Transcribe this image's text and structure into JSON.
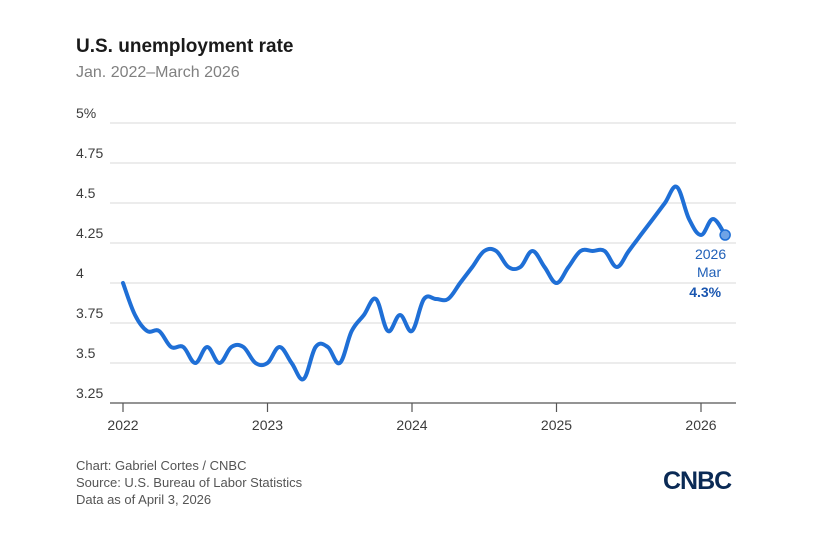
{
  "chart_data": {
    "type": "line",
    "title": "U.S. unemployment rate",
    "subtitle": "Jan. 2022–March 2026",
    "xlabel": "",
    "ylabel": "",
    "ylim": [
      3.25,
      5
    ],
    "y_ticks": [
      "5%",
      "4.75",
      "4.5",
      "4.25",
      "4",
      "3.75",
      "3.5",
      "3.25"
    ],
    "y_tick_values": [
      5,
      4.75,
      4.5,
      4.25,
      4,
      3.75,
      3.5,
      3.25
    ],
    "x_ticks": [
      "2022",
      "2023",
      "2024",
      "2025",
      "2026"
    ],
    "x_tick_values": [
      2022,
      2023,
      2024,
      2025,
      2026
    ],
    "series": [
      {
        "name": "Unemployment rate",
        "color": "#1f6fd6",
        "x": [
          2022.0,
          2022.083,
          2022.167,
          2022.25,
          2022.333,
          2022.417,
          2022.5,
          2022.583,
          2022.667,
          2022.75,
          2022.833,
          2022.917,
          2023.0,
          2023.083,
          2023.167,
          2023.25,
          2023.333,
          2023.417,
          2023.5,
          2023.583,
          2023.667,
          2023.75,
          2023.833,
          2023.917,
          2024.0,
          2024.083,
          2024.167,
          2024.25,
          2024.333,
          2024.417,
          2024.5,
          2024.583,
          2024.667,
          2024.75,
          2024.833,
          2024.917,
          2025.0,
          2025.083,
          2025.167,
          2025.25,
          2025.333,
          2025.417,
          2025.5,
          2025.583,
          2025.667,
          2025.75,
          2025.833,
          2025.917,
          2026.0,
          2026.083,
          2026.167
        ],
        "values": [
          4.0,
          3.8,
          3.7,
          3.7,
          3.6,
          3.6,
          3.5,
          3.6,
          3.5,
          3.6,
          3.6,
          3.5,
          3.5,
          3.6,
          3.5,
          3.4,
          3.6,
          3.6,
          3.5,
          3.7,
          3.8,
          3.9,
          3.7,
          3.8,
          3.7,
          3.9,
          3.9,
          3.9,
          4.0,
          4.1,
          4.2,
          4.2,
          4.1,
          4.1,
          4.2,
          4.1,
          4.0,
          4.1,
          4.2,
          4.2,
          4.2,
          4.1,
          4.2,
          4.3,
          4.4,
          4.5,
          4.6,
          4.4,
          4.3,
          4.4,
          4.3
        ]
      }
    ],
    "annotation": {
      "year": "2026",
      "month": "Mar",
      "value": "4.3%"
    }
  },
  "footer": {
    "credit": "Chart: Gabriel Cortes / CNBC",
    "source": "Source: U.S. Bureau of Labor Statistics",
    "date": "Data as of April 3, 2026"
  },
  "logo": "CNBC",
  "colors": {
    "line": "#1f6fd6",
    "grid": "#d9d9d9",
    "axis": "#555555"
  }
}
